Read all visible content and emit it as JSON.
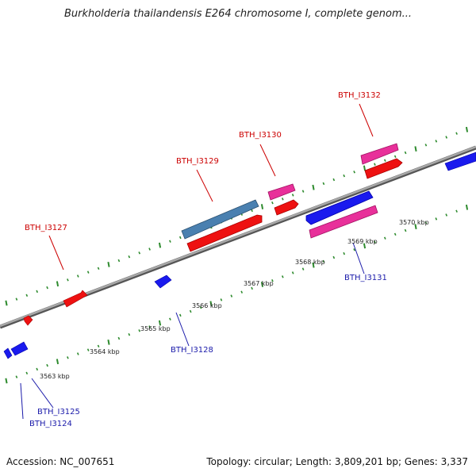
{
  "title": "Burkholderia thailandensis E264 chromosome I, complete genom...",
  "footer": {
    "accession": "Accession: NC_007651",
    "summary": "Topology: circular; Length: 3,809,201 bp; Genes: 3,337"
  },
  "colors": {
    "background": "#ffffff",
    "forward_label": "#cc0000",
    "reverse_label": "#1a1aaa",
    "cds_forward": "#ee1111",
    "cds_reverse": "#1a1aee",
    "gene_magenta": "#e8309a",
    "gene_steelblue": "#4a80b0",
    "backbone": "#888888",
    "tick": "#2e8b2e"
  },
  "scale": {
    "tick_labels": [
      "3563 kbp",
      "3564 kbp",
      "3565 kbp",
      "3566 kbp",
      "3567 kbp",
      "3568 kbp",
      "3569 kbp",
      "3570 kbp"
    ]
  },
  "gene_labels": {
    "forward": [
      "BTH_I3127",
      "BTH_I3129",
      "BTH_I3130",
      "BTH_I3132"
    ],
    "reverse": [
      "BTH_I3124",
      "BTH_I3125",
      "BTH_I3128",
      "BTH_I3131"
    ]
  }
}
